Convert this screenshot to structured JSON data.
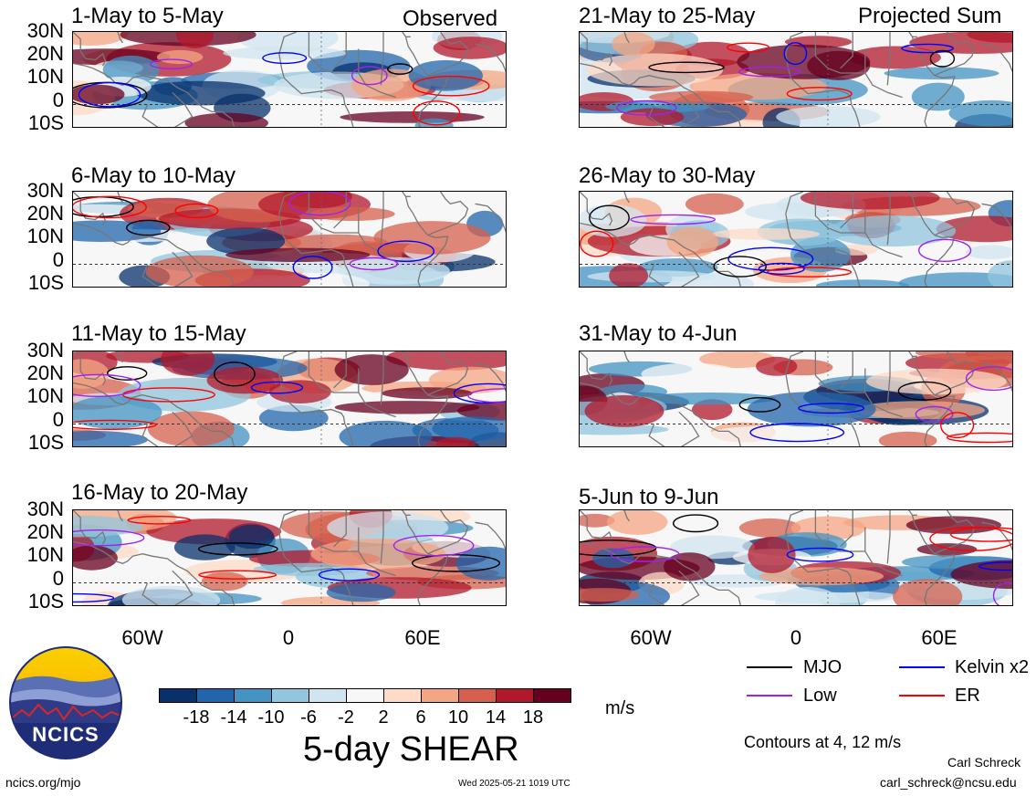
{
  "panels": [
    {
      "title": "1-May to 5-May",
      "tag": "Observed"
    },
    {
      "title": "6-May to 10-May",
      "tag": ""
    },
    {
      "title": "11-May to 15-May",
      "tag": ""
    },
    {
      "title": "16-May to 20-May",
      "tag": ""
    },
    {
      "title": "21-May to 25-May",
      "tag": "Projected Sum"
    },
    {
      "title": "26-May to 30-May",
      "tag": ""
    },
    {
      "title": "31-May to 4-Jun",
      "tag": ""
    },
    {
      "title": "5-Jun to 9-Jun",
      "tag": ""
    }
  ],
  "lat_labels": [
    "30N",
    "20N",
    "10N",
    "0",
    "10S"
  ],
  "lon_labels": [
    "60W",
    "0",
    "60E"
  ],
  "colorbar": {
    "labels": [
      "-18",
      "-14",
      "-10",
      "-6",
      "-2",
      "2",
      "6",
      "10",
      "14",
      "18"
    ],
    "colors": [
      "#08306b",
      "#2166ac",
      "#4393c3",
      "#92c5de",
      "#d1e5f0",
      "#f7f7f7",
      "#fddbc7",
      "#f4a582",
      "#d6604d",
      "#b2182b",
      "#67001f"
    ],
    "units": "m/s",
    "title": "5-day SHEAR"
  },
  "legend": {
    "mjo": {
      "label": "MJO",
      "color": "#000000"
    },
    "kelvin": {
      "label": "Kelvin x2",
      "color": "#0000ff"
    },
    "low": {
      "label": "Low",
      "color": "#a020f0"
    },
    "er": {
      "label": "ER",
      "color": "#ff0000"
    }
  },
  "contours_note": "Contours at 4, 12 m/s",
  "logo_text": "NCICS",
  "footer": {
    "url": "ncics.org/mjo",
    "timestamp": "Wed 2025-05-21 1019 UTC",
    "author": "Carl Schreck",
    "email": "carl_schreck@ncsu.edu"
  }
}
